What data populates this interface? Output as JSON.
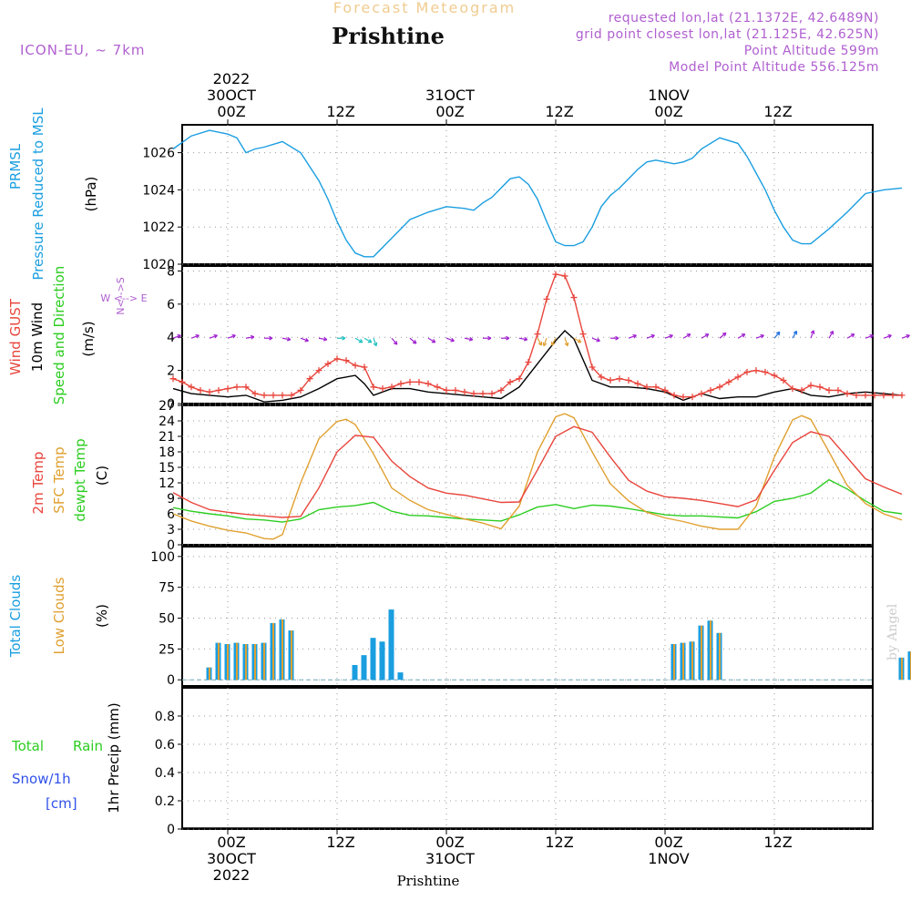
{
  "header": {
    "forecast_title": "Forecast Meteogram",
    "location": "Prishtine",
    "model": "ICON-EU, ~ 7km",
    "requested": "requested lon,lat (21.1372E, 42.6489N)",
    "grid_point": "grid point closest lon,lat (21.125E, 42.625N)",
    "point_altitude": "Point Altitude 599m",
    "model_altitude": "Model Point Altitude 556.125m",
    "footer_location": "Prishtine",
    "watermark": "by Angel"
  },
  "time_axis": {
    "top": [
      {
        "hour": "00Z",
        "date": "30OCT",
        "year": "2022"
      },
      {
        "hour": "12Z",
        "date": "",
        "year": ""
      },
      {
        "hour": "00Z",
        "date": "31OCT",
        "year": ""
      },
      {
        "hour": "12Z",
        "date": "",
        "year": ""
      },
      {
        "hour": "00Z",
        "date": "1NOV",
        "year": ""
      },
      {
        "hour": "12Z",
        "date": "",
        "year": ""
      }
    ],
    "bottom": [
      {
        "hour": "00Z",
        "date": "30OCT",
        "year": "2022"
      },
      {
        "hour": "12Z",
        "date": "",
        "year": ""
      },
      {
        "hour": "00Z",
        "date": "31OCT",
        "year": ""
      },
      {
        "hour": "12Z",
        "date": "",
        "year": ""
      },
      {
        "hour": "00Z",
        "date": "1NOV",
        "year": ""
      },
      {
        "hour": "12Z",
        "date": "",
        "year": ""
      }
    ]
  },
  "panels": {
    "pressure": {
      "label1": "PRMSL",
      "label2": "Pressure Reduced to MSL",
      "unit": "(hPa)",
      "color": "#1a9ee0"
    },
    "wind": {
      "label_gust": "Wind GUST",
      "label_wind": "10m Wind",
      "label_dir": "Speed and Direction",
      "unit": "(m/s)",
      "compass_ns": "N<-->S",
      "compass_ew": "W <--> E"
    },
    "temp": {
      "label_t2m": "2m Temp",
      "label_sfc": "SFC Temp",
      "label_dew": "dewpt Temp",
      "unit": "(C)"
    },
    "clouds": {
      "label_total": "Total Clouds",
      "label_low": "Low Clouds",
      "unit": "(%)"
    },
    "precip": {
      "label_total": "Total",
      "label_rain": "Rain",
      "label_snow": "Snow/1h",
      "label_cm": "[cm]",
      "unit": "1hr Precip (mm)"
    }
  },
  "chart_data": [
    {
      "type": "line",
      "title": "PRMSL Pressure Reduced to MSL",
      "ylabel": "(hPa)",
      "x_hours": [
        -6,
        -3,
        0,
        3,
        6,
        9,
        12,
        15,
        18,
        21,
        24,
        27,
        30,
        33,
        36,
        39,
        42,
        45,
        48,
        51,
        54,
        57,
        60,
        63,
        66,
        69,
        72,
        75,
        78,
        81,
        84,
        87
      ],
      "ylim": [
        1020,
        1027.5
      ],
      "yticks": [
        "1020",
        "1022",
        "1024",
        "1026"
      ],
      "series": [
        {
          "name": "PRMSL",
          "color": "#1a9ee0",
          "x": [
            -6,
            -4,
            -2,
            0,
            1,
            2,
            3,
            4,
            6,
            8,
            10,
            11,
            12,
            13,
            14,
            15,
            16,
            18,
            19,
            20,
            22,
            24,
            26,
            27,
            28,
            29,
            30,
            31,
            32,
            33,
            34,
            35,
            36,
            37,
            38,
            39,
            40,
            41,
            42,
            43,
            44,
            45,
            46,
            47,
            48,
            49,
            50,
            51,
            52,
            54,
            56,
            57,
            58,
            59,
            60,
            61,
            62,
            63,
            64,
            66,
            68,
            69,
            70,
            72,
            74
          ],
          "y": [
            1026.2,
            1026.9,
            1027.2,
            1027.0,
            1026.8,
            1026.0,
            1026.2,
            1026.3,
            1026.6,
            1026.0,
            1024.5,
            1023.5,
            1022.3,
            1021.3,
            1020.6,
            1020.4,
            1020.4,
            1021.4,
            1021.9,
            1022.4,
            1022.8,
            1023.1,
            1023.0,
            1022.9,
            1023.3,
            1023.6,
            1024.1,
            1024.6,
            1024.7,
            1024.3,
            1023.5,
            1022.3,
            1021.2,
            1021.0,
            1021.0,
            1021.2,
            1022.0,
            1023.1,
            1023.7,
            1024.1,
            1024.6,
            1025.1,
            1025.5,
            1025.6,
            1025.5,
            1025.4,
            1025.5,
            1025.7,
            1026.2,
            1026.8,
            1026.5,
            1025.8,
            1024.9,
            1024.0,
            1022.9,
            1022.0,
            1021.3,
            1021.1,
            1021.1,
            1021.9,
            1022.8,
            1023.3,
            1023.8,
            1024.0,
            1024.1
          ]
        }
      ]
    },
    {
      "type": "line",
      "title": "Wind GUST / 10m Wind Speed and Direction",
      "ylabel": "(m/s)",
      "ylim": [
        0,
        8.3
      ],
      "yticks": [
        "0",
        "2",
        "4",
        "6",
        "8"
      ],
      "series": [
        {
          "name": "Wind GUST",
          "color": "#e8453c",
          "marker": "+",
          "x": [
            -6,
            -5,
            -4,
            -3,
            -2,
            -1,
            0,
            1,
            2,
            3,
            4,
            5,
            6,
            7,
            8,
            9,
            10,
            11,
            12,
            13,
            14,
            15,
            16,
            17,
            18,
            19,
            20,
            21,
            22,
            23,
            24,
            25,
            26,
            27,
            28,
            29,
            30,
            31,
            32,
            33,
            34,
            35,
            36,
            37,
            38,
            39,
            40,
            41,
            42,
            43,
            44,
            45,
            46,
            47,
            48,
            49,
            50,
            51,
            52,
            53,
            54,
            55,
            56,
            57,
            58,
            59,
            60,
            61,
            62,
            63,
            64,
            65,
            66,
            67,
            68,
            69,
            70,
            71,
            72,
            73,
            74
          ],
          "y": [
            1.5,
            1.3,
            1.0,
            0.8,
            0.7,
            0.8,
            0.9,
            1.0,
            1.0,
            0.6,
            0.5,
            0.5,
            0.5,
            0.5,
            0.8,
            1.5,
            2.0,
            2.4,
            2.7,
            2.6,
            2.3,
            2.2,
            1.0,
            0.9,
            1.0,
            1.2,
            1.3,
            1.3,
            1.2,
            1.0,
            0.8,
            0.8,
            0.7,
            0.6,
            0.6,
            0.6,
            0.8,
            1.3,
            1.5,
            2.5,
            4.2,
            6.3,
            7.8,
            7.7,
            6.4,
            4.2,
            2.2,
            1.6,
            1.4,
            1.5,
            1.4,
            1.2,
            1.0,
            1.0,
            0.8,
            0.5,
            0.4,
            0.4,
            0.6,
            0.8,
            1.0,
            1.3,
            1.6,
            1.9,
            2.0,
            1.9,
            1.7,
            1.4,
            0.9,
            0.8,
            1.1,
            1.0,
            0.8,
            0.8,
            0.6,
            0.5,
            0.5,
            0.5,
            0.5,
            0.5,
            0.5
          ]
        },
        {
          "name": "10m Wind",
          "color": "#000000",
          "x": [
            -6,
            -4,
            -2,
            0,
            2,
            4,
            6,
            8,
            10,
            12,
            14,
            15,
            16,
            18,
            20,
            22,
            24,
            26,
            28,
            30,
            32,
            34,
            36,
            37,
            38,
            40,
            42,
            44,
            46,
            48,
            50,
            52,
            54,
            56,
            58,
            60,
            62,
            64,
            66,
            68,
            70,
            72,
            74
          ],
          "y": [
            0.9,
            0.6,
            0.5,
            0.4,
            0.5,
            0.1,
            0.2,
            0.4,
            0.9,
            1.5,
            1.7,
            1.2,
            0.5,
            0.9,
            0.9,
            0.7,
            0.6,
            0.5,
            0.4,
            0.3,
            1.0,
            2.4,
            3.8,
            4.4,
            3.9,
            1.4,
            1.0,
            1.0,
            0.9,
            0.7,
            0.2,
            0.6,
            0.3,
            0.4,
            0.4,
            0.7,
            0.9,
            0.5,
            0.4,
            0.6,
            0.7,
            0.6,
            0.5
          ]
        }
      ]
    },
    {
      "type": "line",
      "title": "2m Temp / SFC Temp / dewpt Temp",
      "ylabel": "(C)",
      "ylim": [
        0,
        27
      ],
      "yticks": [
        "0",
        "3",
        "6",
        "9",
        "12",
        "15",
        "18",
        "21",
        "24",
        "27"
      ],
      "series": [
        {
          "name": "2m Temp",
          "color": "#e8453c",
          "x": [
            -6,
            -4,
            -2,
            0,
            2,
            4,
            6,
            8,
            10,
            12,
            14,
            16,
            18,
            20,
            22,
            24,
            26,
            28,
            30,
            32,
            34,
            36,
            38,
            40,
            42,
            44,
            46,
            48,
            50,
            52,
            54,
            56,
            58,
            60,
            62,
            64,
            66,
            68,
            70,
            72,
            74
          ],
          "y": [
            10.1,
            8.2,
            6.8,
            6.3,
            5.9,
            5.6,
            5.3,
            5.5,
            11.0,
            18.0,
            21.2,
            20.8,
            16.2,
            13.2,
            11.0,
            10.0,
            9.6,
            8.9,
            8.2,
            8.3,
            14.5,
            21.0,
            22.9,
            21.8,
            17.0,
            12.5,
            10.4,
            9.3,
            9.0,
            8.6,
            8.0,
            7.4,
            8.7,
            14.4,
            19.8,
            21.9,
            21.0,
            16.9,
            12.8,
            11.2,
            9.8
          ]
        },
        {
          "name": "SFC Temp",
          "color": "#e0a030",
          "x": [
            -6,
            -4,
            -2,
            0,
            2,
            4,
            5,
            6,
            8,
            10,
            12,
            13,
            14,
            16,
            18,
            20,
            22,
            24,
            26,
            28,
            30,
            32,
            34,
            36,
            37,
            38,
            40,
            42,
            44,
            46,
            48,
            50,
            52,
            54,
            56,
            58,
            60,
            62,
            63,
            64,
            66,
            68,
            70,
            72,
            74
          ],
          "y": [
            6.0,
            4.6,
            3.6,
            2.8,
            2.3,
            1.2,
            1.1,
            2.0,
            12.0,
            20.5,
            23.9,
            24.3,
            23.3,
            17.6,
            11.0,
            8.6,
            6.8,
            5.9,
            5.0,
            4.2,
            3.1,
            7.5,
            18.0,
            24.8,
            25.4,
            24.6,
            18.0,
            11.8,
            8.5,
            6.3,
            5.2,
            4.5,
            3.6,
            3.0,
            3.0,
            7.5,
            17.0,
            24.2,
            25.0,
            24.3,
            18.0,
            11.5,
            8.0,
            6.0,
            4.8
          ]
        },
        {
          "name": "dewpt Temp",
          "color": "#2ccd20",
          "x": [
            -6,
            -4,
            -2,
            0,
            2,
            4,
            6,
            8,
            10,
            12,
            14,
            16,
            18,
            20,
            22,
            24,
            26,
            28,
            30,
            32,
            34,
            36,
            38,
            40,
            42,
            44,
            46,
            48,
            50,
            52,
            54,
            56,
            58,
            60,
            62,
            64,
            66,
            68,
            70,
            72,
            74
          ],
          "y": [
            7.2,
            6.5,
            6.0,
            5.6,
            5.0,
            4.8,
            4.4,
            5.0,
            6.8,
            7.3,
            7.6,
            8.2,
            6.5,
            5.7,
            5.6,
            5.3,
            5.0,
            4.8,
            4.6,
            5.8,
            7.3,
            7.8,
            7.0,
            7.7,
            7.5,
            7.0,
            6.4,
            5.8,
            5.6,
            5.6,
            5.4,
            5.2,
            6.4,
            8.4,
            9.0,
            10.0,
            12.6,
            10.8,
            8.5,
            6.5,
            6.0
          ]
        }
      ]
    },
    {
      "type": "bar",
      "title": "Total Clouds / Low Clouds",
      "ylabel": "(%)",
      "ylim": [
        -5,
        108
      ],
      "yticks": [
        "0",
        "25",
        "50",
        "75",
        "100"
      ],
      "series": [
        {
          "name": "Total Clouds",
          "color": "#1a9ee0",
          "x": [
            -2,
            -1,
            0,
            1,
            2,
            3,
            4,
            5,
            6,
            7,
            8,
            14,
            15,
            16,
            17,
            18,
            19,
            49,
            50,
            51,
            52,
            53,
            54,
            55,
            74,
            75
          ],
          "values": [
            10,
            30,
            29,
            30,
            29,
            29,
            30,
            46,
            49,
            40,
            0,
            12,
            20,
            34,
            31,
            57,
            6,
            29,
            30,
            31,
            44,
            48,
            38,
            0,
            18,
            23
          ]
        },
        {
          "name": "Low Clouds",
          "color": "#e0a030",
          "x": [
            -2,
            -1,
            0,
            1,
            2,
            3,
            4,
            5,
            6,
            7,
            49,
            50,
            51,
            52,
            53,
            54,
            74,
            75
          ],
          "values": [
            10,
            30,
            29,
            30,
            29,
            29,
            30,
            46,
            49,
            40,
            29,
            30,
            31,
            44,
            48,
            38,
            18,
            23
          ]
        }
      ]
    },
    {
      "type": "line",
      "title": "Total Rain Snow/1h",
      "ylabel": "1hr Precip (mm)",
      "ylim": [
        0,
        1.0
      ],
      "yticks": [
        "0",
        "0.2",
        "0.4",
        "0.6",
        "0.8"
      ],
      "series": [
        {
          "name": "Total Rain",
          "color": "#2ccd20",
          "values": []
        },
        {
          "name": "Snow/1h [cm]",
          "color": "#3050e8",
          "values": []
        }
      ]
    }
  ],
  "wind_arrows": {
    "note": "wind direction arrows along the 4 m/s line",
    "series": [
      {
        "name": "Wind direction",
        "color": "#a020d0",
        "x": [
          -6,
          -4,
          -2,
          0,
          2,
          4,
          6,
          8,
          10,
          12,
          14,
          15,
          16,
          18,
          20,
          22,
          24,
          26,
          28,
          30,
          32,
          34,
          35,
          36,
          37,
          38,
          40,
          42,
          44,
          46,
          48,
          50,
          52,
          54,
          56,
          58,
          60,
          62,
          64,
          66,
          68,
          70,
          72,
          74
        ],
        "dir_deg": [
          250,
          250,
          250,
          250,
          260,
          270,
          280,
          290,
          280,
          270,
          300,
          300,
          340,
          320,
          310,
          300,
          290,
          280,
          270,
          270,
          280,
          330,
          20,
          30,
          340,
          300,
          290,
          270,
          250,
          250,
          250,
          240,
          240,
          230,
          240,
          250,
          220,
          210,
          200,
          210,
          240,
          250,
          250,
          250
        ]
      }
    ]
  }
}
